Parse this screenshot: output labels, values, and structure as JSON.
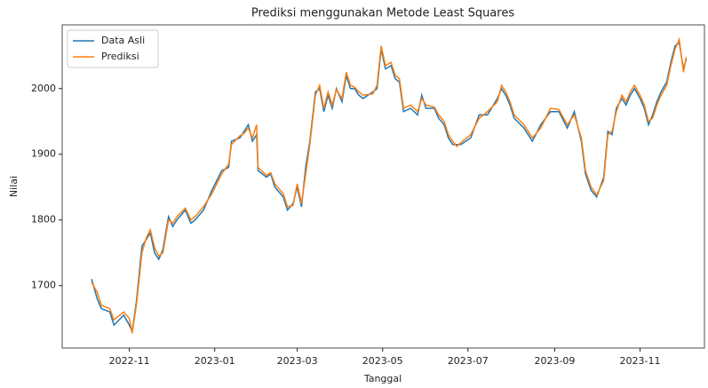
{
  "chart_data": {
    "type": "line",
    "title": "Prediksi menggunakan Metode Least Squares",
    "x_label": "Tanggal",
    "y_label": "Nilai",
    "x": [
      19270,
      19274,
      19277,
      19283,
      19286,
      19293,
      19297,
      19299,
      19302,
      19306,
      19309,
      19312,
      19315,
      19318,
      19321,
      19325,
      19328,
      19331,
      19337,
      19341,
      19344,
      19350,
      19356,
      19363,
      19368,
      19370,
      19376,
      19379,
      19382,
      19385,
      19388,
      19389,
      19395,
      19398,
      19401,
      19407,
      19410,
      19414,
      19417,
      19420,
      19423,
      19426,
      19430,
      19433,
      19436,
      19439,
      19442,
      19445,
      19449,
      19452,
      19455,
      19458,
      19461,
      19464,
      19471,
      19474,
      19477,
      19480,
      19484,
      19487,
      19490,
      19493,
      19498,
      19503,
      19506,
      19509,
      19515,
      19518,
      19522,
      19525,
      19528,
      19531,
      19534,
      19541,
      19547,
      19553,
      19560,
      19563,
      19566,
      19569,
      19572,
      19579,
      19585,
      19591,
      19598,
      19604,
      19610,
      19615,
      19620,
      19623,
      19627,
      19631,
      19636,
      19639,
      19642,
      19645,
      19649,
      19652,
      19655,
      19658,
      19662,
      19665,
      19668,
      19671,
      19674,
      19677,
      19681,
      19684,
      19687,
      19690,
      19693,
      19695
    ],
    "series": [
      {
        "name": "Data Asli",
        "color": "#1f77b4",
        "values": [
          1710,
          1680,
          1665,
          1660,
          1640,
          1655,
          1640,
          1630,
          1675,
          1760,
          1770,
          1780,
          1750,
          1740,
          1755,
          1805,
          1790,
          1800,
          1815,
          1795,
          1800,
          1815,
          1845,
          1875,
          1880,
          1920,
          1925,
          1935,
          1945,
          1920,
          1930,
          1875,
          1865,
          1870,
          1850,
          1835,
          1815,
          1825,
          1850,
          1820,
          1880,
          1920,
          1995,
          2000,
          1965,
          1990,
          1970,
          2000,
          1980,
          2020,
          2000,
          2000,
          1990,
          1985,
          1995,
          2000,
          2060,
          2030,
          2035,
          2015,
          2010,
          1965,
          1970,
          1960,
          1990,
          1970,
          1970,
          1955,
          1945,
          1925,
          1915,
          1915,
          1915,
          1925,
          1960,
          1960,
          1985,
          2000,
          1990,
          1975,
          1955,
          1940,
          1920,
          1945,
          1965,
          1965,
          1940,
          1965,
          1920,
          1870,
          1845,
          1835,
          1865,
          1935,
          1930,
          1970,
          1985,
          1975,
          1990,
          2000,
          1985,
          1970,
          1945,
          1960,
          1980,
          1995,
          2010,
          2040,
          2065,
          2070,
          2030,
          2045
        ]
      },
      {
        "name": "Prediksi",
        "color": "#ff7f0e",
        "values": [
          1705,
          1690,
          1670,
          1665,
          1648,
          1660,
          1650,
          1628,
          1670,
          1750,
          1772,
          1785,
          1758,
          1745,
          1750,
          1800,
          1795,
          1805,
          1818,
          1800,
          1805,
          1820,
          1840,
          1870,
          1885,
          1915,
          1928,
          1932,
          1940,
          1925,
          1945,
          1880,
          1868,
          1872,
          1855,
          1840,
          1820,
          1822,
          1855,
          1825,
          1870,
          1915,
          1990,
          2005,
          1970,
          1995,
          1975,
          1998,
          1985,
          2025,
          2005,
          2002,
          1995,
          1990,
          1992,
          2005,
          2065,
          2035,
          2040,
          2020,
          2015,
          1970,
          1975,
          1965,
          1985,
          1975,
          1972,
          1960,
          1950,
          1930,
          1920,
          1912,
          1918,
          1930,
          1955,
          1965,
          1980,
          2005,
          1995,
          1980,
          1960,
          1945,
          1925,
          1940,
          1970,
          1968,
          1945,
          1960,
          1925,
          1875,
          1850,
          1838,
          1860,
          1930,
          1935,
          1965,
          1990,
          1980,
          1995,
          2005,
          1990,
          1975,
          1950,
          1955,
          1975,
          1990,
          2005,
          2035,
          2060,
          2075,
          2025,
          2048
        ]
      }
    ],
    "xlim": [
      19249,
      19708
    ],
    "xticks": [
      {
        "value": 19297,
        "label": "2022-11"
      },
      {
        "value": 19358,
        "label": "2023-01"
      },
      {
        "value": 19417,
        "label": "2023-03"
      },
      {
        "value": 19478,
        "label": "2023-05"
      },
      {
        "value": 19539,
        "label": "2023-07"
      },
      {
        "value": 19601,
        "label": "2023-09"
      },
      {
        "value": 19662,
        "label": "2023-11"
      }
    ],
    "ylim": [
      1605,
      2097
    ],
    "yticks": [
      1700,
      1800,
      1900,
      2000
    ],
    "grid": false,
    "legend": "upper-left"
  }
}
